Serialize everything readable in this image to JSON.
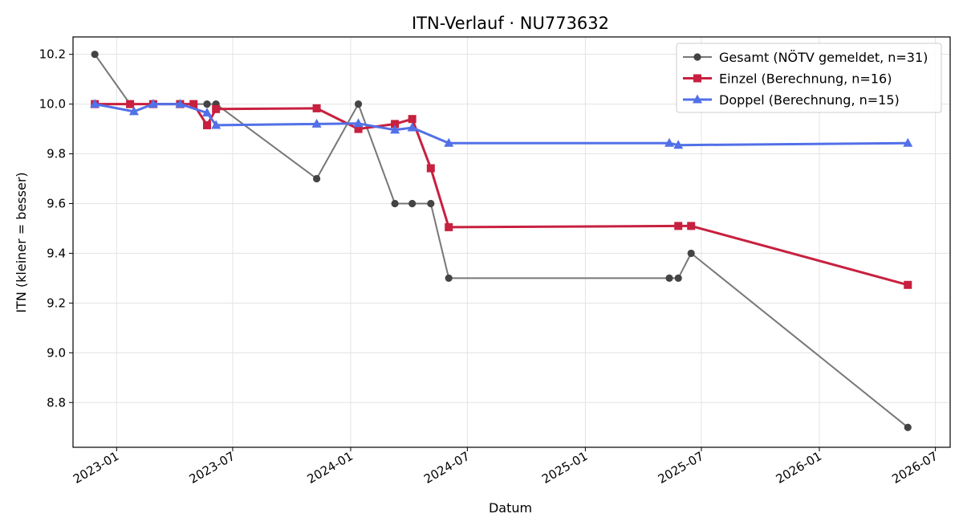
{
  "chart_data": {
    "type": "line",
    "title": "ITN-Verlauf · NU773632",
    "xlabel": "Datum",
    "ylabel": "ITN  (kleiner = besser)",
    "xlim": [
      "2022-10-25",
      "2026-07-24"
    ],
    "ylim": [
      8.62,
      10.27
    ],
    "x_ticks": [
      "2023-01-01",
      "2023-07-01",
      "2024-01-01",
      "2024-07-01",
      "2025-01-01",
      "2025-07-01",
      "2026-01-01",
      "2026-07-01"
    ],
    "x_tick_labels": [
      "2023-01",
      "2023-07",
      "2024-01",
      "2024-07",
      "2025-01",
      "2025-07",
      "2026-01",
      "2026-07"
    ],
    "y_ticks": [
      8.8,
      9.0,
      9.2,
      9.4,
      9.6,
      9.8,
      10.0,
      10.2
    ],
    "y_tick_labels": [
      "8.8",
      "9.0",
      "9.2",
      "9.4",
      "9.6",
      "9.8",
      "10.0",
      "10.2"
    ],
    "grid": true,
    "legend_position": "top-right",
    "series": [
      {
        "name": "Gesamt (NÖTV gemeldet, n=31)",
        "color": "#777777",
        "marker_color": "#444444",
        "marker": "circle",
        "line_width": 2,
        "points": [
          {
            "x": "2022-11-28",
            "y": 10.2
          },
          {
            "x": "2023-01-22",
            "y": 10.0
          },
          {
            "x": "2023-02-27",
            "y": 10.0
          },
          {
            "x": "2023-04-10",
            "y": 10.0
          },
          {
            "x": "2023-05-22",
            "y": 10.0
          },
          {
            "x": "2023-06-05",
            "y": 10.0
          },
          {
            "x": "2023-11-09",
            "y": 9.7
          },
          {
            "x": "2024-01-13",
            "y": 10.0
          },
          {
            "x": "2024-03-10",
            "y": 9.6
          },
          {
            "x": "2024-04-06",
            "y": 9.6
          },
          {
            "x": "2024-05-05",
            "y": 9.6
          },
          {
            "x": "2024-06-02",
            "y": 9.3
          },
          {
            "x": "2025-05-12",
            "y": 9.3
          },
          {
            "x": "2025-05-26",
            "y": 9.3
          },
          {
            "x": "2025-06-15",
            "y": 9.4
          },
          {
            "x": "2026-05-19",
            "y": 8.7
          }
        ]
      },
      {
        "name": "Einzel (Berechnung, n=16)",
        "color": "#c8203f",
        "marker_color": "#c8203f",
        "marker": "square",
        "line_width": 3,
        "points": [
          {
            "x": "2022-11-28",
            "y": 10.0
          },
          {
            "x": "2023-01-22",
            "y": 10.0
          },
          {
            "x": "2023-02-27",
            "y": 10.0
          },
          {
            "x": "2023-04-10",
            "y": 10.0
          },
          {
            "x": "2023-05-01",
            "y": 10.0
          },
          {
            "x": "2023-05-22",
            "y": 9.915
          },
          {
            "x": "2023-06-05",
            "y": 9.98
          },
          {
            "x": "2023-11-09",
            "y": 9.983
          },
          {
            "x": "2024-01-13",
            "y": 9.9
          },
          {
            "x": "2024-03-10",
            "y": 9.92
          },
          {
            "x": "2024-04-06",
            "y": 9.94
          },
          {
            "x": "2024-05-05",
            "y": 9.742
          },
          {
            "x": "2024-06-02",
            "y": 9.505
          },
          {
            "x": "2025-05-26",
            "y": 9.51
          },
          {
            "x": "2025-06-15",
            "y": 9.51
          },
          {
            "x": "2026-05-19",
            "y": 9.273
          }
        ]
      },
      {
        "name": "Doppel (Berechnung, n=15)",
        "color": "#5270e8",
        "marker_color": "#5270e8",
        "marker": "triangle",
        "line_width": 3,
        "points": [
          {
            "x": "2022-11-28",
            "y": 10.0
          },
          {
            "x": "2023-01-28",
            "y": 9.97
          },
          {
            "x": "2023-02-27",
            "y": 10.0
          },
          {
            "x": "2023-04-10",
            "y": 10.0
          },
          {
            "x": "2023-05-22",
            "y": 9.965
          },
          {
            "x": "2023-06-05",
            "y": 9.915
          },
          {
            "x": "2023-11-09",
            "y": 9.92
          },
          {
            "x": "2024-01-13",
            "y": 9.922
          },
          {
            "x": "2024-03-10",
            "y": 9.896
          },
          {
            "x": "2024-04-06",
            "y": 9.905
          },
          {
            "x": "2024-06-02",
            "y": 9.843
          },
          {
            "x": "2025-05-12",
            "y": 9.843
          },
          {
            "x": "2025-05-26",
            "y": 9.835
          },
          {
            "x": "2026-05-19",
            "y": 9.843
          }
        ]
      }
    ]
  }
}
